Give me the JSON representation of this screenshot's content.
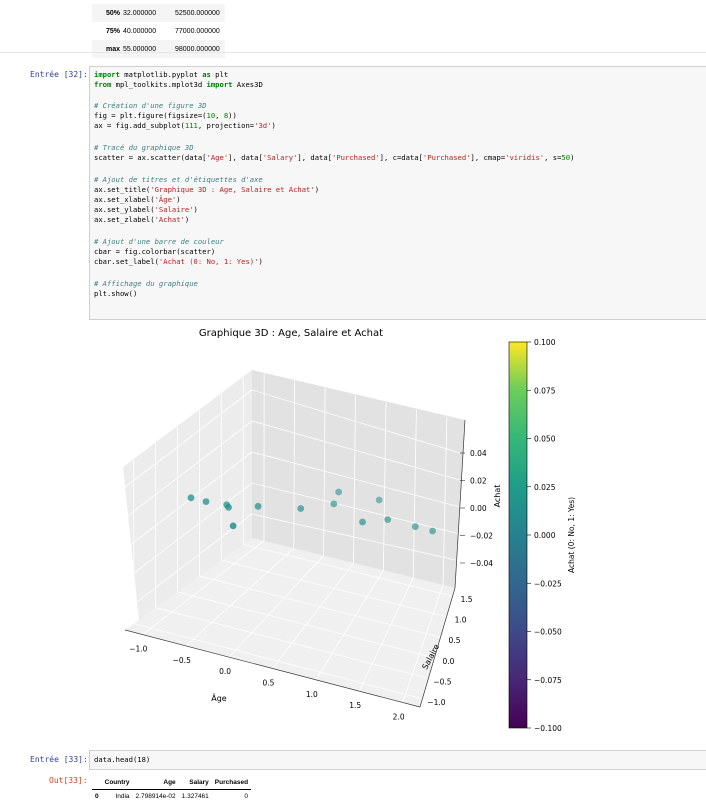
{
  "describe_table": {
    "rows": [
      {
        "label": "50%",
        "age": "32.000000",
        "salary": "52500.000000"
      },
      {
        "label": "75%",
        "age": "40.000000",
        "salary": "77000.000000"
      },
      {
        "label": "max",
        "age": "55.000000",
        "salary": "98000.000000"
      }
    ]
  },
  "cell32": {
    "prompt": "Entrée [32]:",
    "lines": [
      "import matplotlib.pyplot as plt",
      "from mpl_toolkits.mplot3d import Axes3D",
      "",
      "# Création d'une figure 3D",
      "fig = plt.figure(figsize=(10, 8))",
      "ax = fig.add_subplot(111, projection='3d')",
      "",
      "# Tracé du graphique 3D",
      "scatter = ax.scatter(data['Age'], data['Salary'], data['Purchased'], c=data['Purchased'], cmap='viridis', s=50)",
      "",
      "# Ajout de titres et d'étiquettes d'axe",
      "ax.set_title('Graphique 3D : Age, Salaire et Achat')",
      "ax.set_xlabel('Âge')",
      "ax.set_ylabel('Salaire')",
      "ax.set_zlabel('Achat')",
      "",
      "# Ajout d'une barre de couleur",
      "cbar = fig.colorbar(scatter)",
      "cbar.set_label('Achat (0: No, 1: Yes)')",
      "",
      "# Affichage du graphique",
      "plt.show()"
    ]
  },
  "chart_data": {
    "type": "scatter",
    "title": "Graphique 3D : Age, Salaire et Achat",
    "xlabel": "Âge",
    "ylabel": "Salaire",
    "zlabel": "Achat",
    "x_ticks": [
      "−1.0",
      "−0.5",
      "0.0",
      "0.5",
      "1.0",
      "1.5",
      "2.0"
    ],
    "y_ticks": [
      "−1.0",
      "−0.5",
      "0.0",
      "0.5",
      "1.0",
      "1.5"
    ],
    "z_ticks": [
      "0.04",
      "0.02",
      "0.00",
      "−0.02",
      "−0.04"
    ],
    "point_color": "#21918c",
    "points": [
      {
        "x": -1.05,
        "y": 0.05,
        "z": 0.0
      },
      {
        "x": -0.85,
        "y": 0.05,
        "z": 0.0
      },
      {
        "x": -0.6,
        "y": 0.1,
        "z": 0.0
      },
      {
        "x": -0.55,
        "y": 0.05,
        "z": 0.0
      },
      {
        "x": -0.25,
        "y": 0.25,
        "z": 0.0
      },
      {
        "x": -0.3,
        "y": -0.35,
        "z": 0.0
      },
      {
        "x": 0.25,
        "y": 0.45,
        "z": 0.0
      },
      {
        "x": 0.6,
        "y": 0.75,
        "z": 0.0
      },
      {
        "x": 0.55,
        "y": 1.05,
        "z": 0.0
      },
      {
        "x": 1.1,
        "y": 0.5,
        "z": 0.0
      },
      {
        "x": 1.15,
        "y": 1.1,
        "z": 0.0
      },
      {
        "x": 1.4,
        "y": 0.7,
        "z": 0.0
      },
      {
        "x": 1.8,
        "y": 0.7,
        "z": 0.0
      },
      {
        "x": 2.05,
        "y": 0.7,
        "z": 0.0
      }
    ],
    "colorbar": {
      "label": "Achat (0: No, 1: Yes)",
      "min": -0.1,
      "max": 0.1,
      "ticks": [
        "0.100",
        "0.075",
        "0.050",
        "0.025",
        "0.000",
        "−0.025",
        "−0.050",
        "−0.075",
        "−0.100"
      ],
      "cmap": "viridis"
    }
  },
  "cell33": {
    "prompt_in": "Entrée [33]:",
    "code": "data.head(18)",
    "prompt_out": "Out[33]:",
    "columns": [
      "Country",
      "Age",
      "Salary",
      "Purchased"
    ],
    "rows": [
      {
        "index": "0",
        "country": "India",
        "age": "2.798914e-02",
        "salary": "1.327461",
        "purchased": "0"
      }
    ]
  }
}
